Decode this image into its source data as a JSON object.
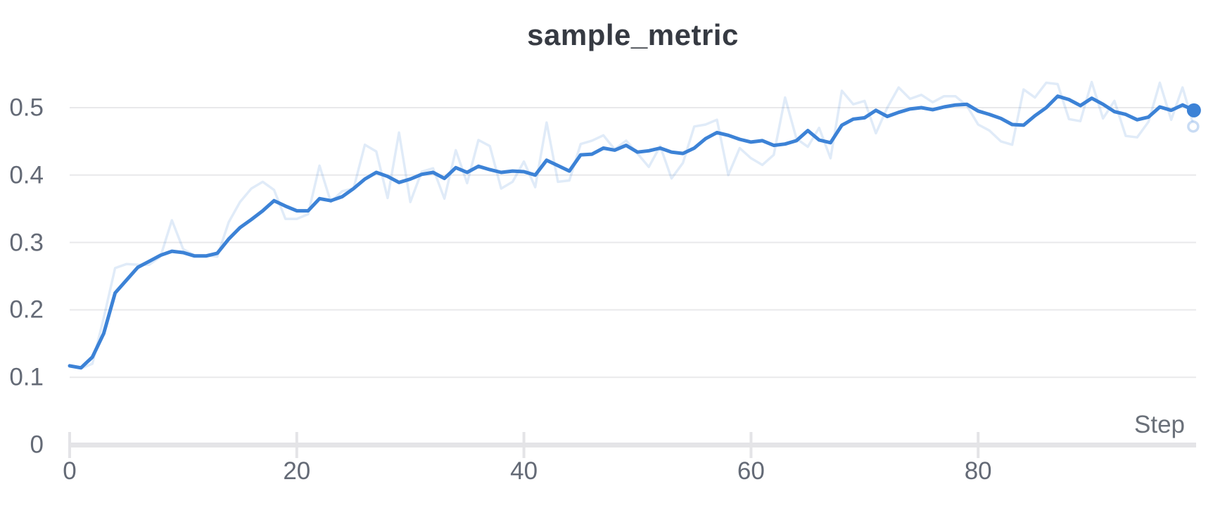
{
  "header": {
    "title": "sample_metric"
  },
  "axes": {
    "x_label": "Step",
    "x_tick_labels": [
      "0",
      "20",
      "40",
      "60",
      "80"
    ],
    "x_tick_values": [
      0,
      20,
      40,
      60,
      80
    ],
    "y_tick_labels": [
      "0",
      "0.1",
      "0.2",
      "0.3",
      "0.4",
      "0.5"
    ],
    "y_tick_values": [
      0,
      0.1,
      0.2,
      0.3,
      0.4,
      0.5
    ]
  },
  "colors": {
    "accent": "#3c82d6",
    "raw_opacity": 0.16,
    "grid": "#e9e9eb",
    "axis": "#e4e4e7",
    "tick_text": "#646a76",
    "title_text": "#363a42"
  },
  "chart_data": {
    "type": "line",
    "title": "sample_metric",
    "xlabel": "Step",
    "ylabel": "",
    "x_range": [
      0,
      99
    ],
    "ylim": [
      0,
      0.55
    ],
    "grid": true,
    "legend_position": "none",
    "x_is_step_index": true,
    "series": [
      {
        "name": "sample_metric (raw)",
        "style": "faded",
        "values": [
          0.116,
          0.113,
          0.12,
          0.188,
          0.262,
          0.268,
          0.267,
          0.267,
          0.279,
          0.333,
          0.29,
          0.281,
          0.281,
          0.279,
          0.33,
          0.36,
          0.38,
          0.39,
          0.378,
          0.335,
          0.335,
          0.342,
          0.414,
          0.36,
          0.376,
          0.38,
          0.445,
          0.435,
          0.366,
          0.463,
          0.36,
          0.405,
          0.41,
          0.365,
          0.437,
          0.388,
          0.452,
          0.443,
          0.38,
          0.39,
          0.42,
          0.382,
          0.478,
          0.39,
          0.392,
          0.446,
          0.451,
          0.459,
          0.438,
          0.451,
          0.432,
          0.412,
          0.443,
          0.395,
          0.418,
          0.472,
          0.475,
          0.482,
          0.4,
          0.44,
          0.425,
          0.415,
          0.43,
          0.515,
          0.454,
          0.442,
          0.47,
          0.425,
          0.525,
          0.505,
          0.51,
          0.462,
          0.5,
          0.53,
          0.513,
          0.519,
          0.508,
          0.517,
          0.517,
          0.503,
          0.475,
          0.466,
          0.45,
          0.445,
          0.527,
          0.515,
          0.537,
          0.535,
          0.483,
          0.48,
          0.538,
          0.484,
          0.51,
          0.458,
          0.456,
          0.479,
          0.537,
          0.482,
          0.53,
          0.472
        ]
      },
      {
        "name": "sample_metric (smoothed)",
        "style": "solid",
        "values": [
          0.117,
          0.114,
          0.13,
          0.165,
          0.225,
          0.244,
          0.263,
          0.272,
          0.281,
          0.287,
          0.285,
          0.28,
          0.28,
          0.284,
          0.305,
          0.322,
          0.334,
          0.347,
          0.362,
          0.354,
          0.347,
          0.347,
          0.365,
          0.362,
          0.368,
          0.38,
          0.394,
          0.404,
          0.398,
          0.389,
          0.394,
          0.401,
          0.404,
          0.395,
          0.411,
          0.404,
          0.413,
          0.408,
          0.404,
          0.406,
          0.405,
          0.4,
          0.422,
          0.414,
          0.406,
          0.43,
          0.431,
          0.44,
          0.437,
          0.444,
          0.434,
          0.436,
          0.44,
          0.434,
          0.432,
          0.44,
          0.454,
          0.463,
          0.459,
          0.453,
          0.449,
          0.451,
          0.444,
          0.446,
          0.451,
          0.466,
          0.452,
          0.448,
          0.474,
          0.483,
          0.485,
          0.496,
          0.487,
          0.493,
          0.498,
          0.5,
          0.497,
          0.501,
          0.504,
          0.505,
          0.495,
          0.49,
          0.484,
          0.475,
          0.474,
          0.488,
          0.5,
          0.517,
          0.512,
          0.503,
          0.514,
          0.505,
          0.494,
          0.49,
          0.482,
          0.486,
          0.501,
          0.496,
          0.504,
          0.496
        ]
      }
    ],
    "end_markers": {
      "smoothed_last": 0.496,
      "raw_last": 0.472
    }
  }
}
